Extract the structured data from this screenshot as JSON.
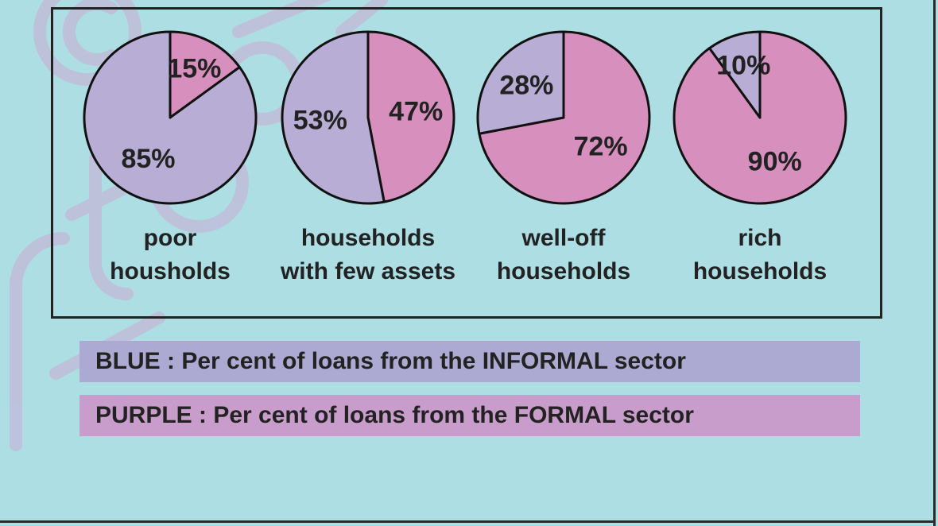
{
  "colors": {
    "background": "#ACDEE4",
    "panel_border": "#222222",
    "informal_slice": "#B8ADD5",
    "formal_slice": "#D78FBD",
    "legend_informal_bg": "#ACA9D2",
    "legend_formal_bg": "#C89DCB",
    "watermark": "#BFC0DA"
  },
  "chart_data": {
    "type": "pie",
    "series_keys": [
      "informal",
      "formal"
    ],
    "pies": [
      {
        "label_line1": "poor",
        "label_line2": "housholds",
        "informal": 85,
        "formal": 15,
        "informal_label": "85%",
        "formal_label": "15%"
      },
      {
        "label_line1": "households",
        "label_line2": "with few assets",
        "informal": 53,
        "formal": 47,
        "informal_label": "53%",
        "formal_label": "47%"
      },
      {
        "label_line1": "well-off",
        "label_line2": "households",
        "informal": 28,
        "formal": 72,
        "informal_label": "28%",
        "formal_label": "72%"
      },
      {
        "label_line1": "rich",
        "label_line2": "households",
        "informal": 10,
        "formal": 90,
        "informal_label": "10%",
        "formal_label": "90%"
      }
    ]
  },
  "legend": {
    "informal_text": "BLUE : Per cent of loans from the INFORMAL sector",
    "formal_text": "PURPLE : Per cent of loans from the FORMAL sector"
  }
}
